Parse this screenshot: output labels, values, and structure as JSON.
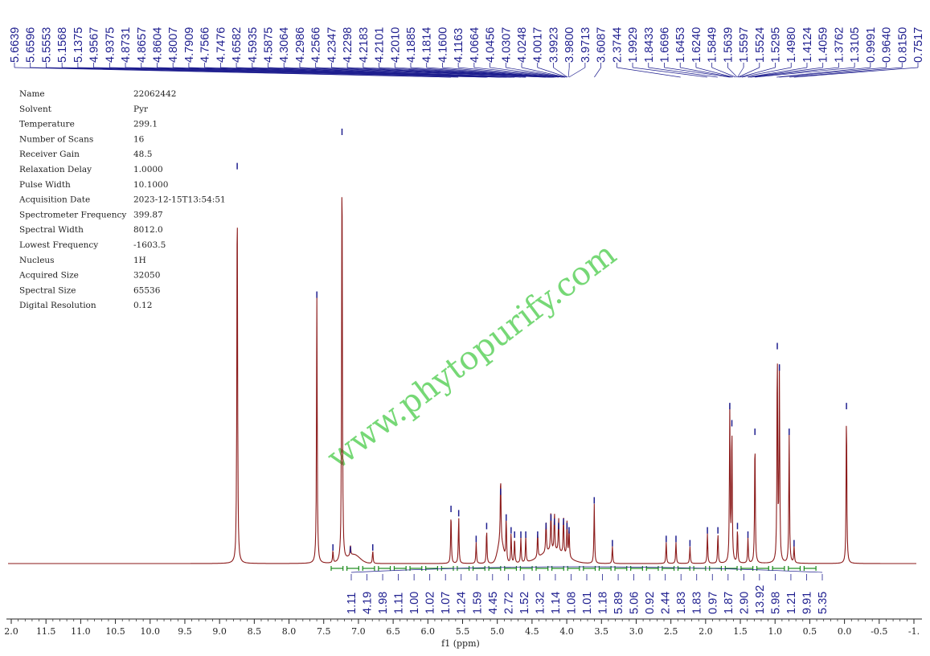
{
  "parameters": [
    {
      "key": "Name",
      "value": "22062442"
    },
    {
      "key": "Solvent",
      "value": "Pyr"
    },
    {
      "key": "Temperature",
      "value": "299.1"
    },
    {
      "key": "Number of Scans",
      "value": "16"
    },
    {
      "key": "Receiver Gain",
      "value": "48.5"
    },
    {
      "key": "Relaxation Delay",
      "value": "1.0000"
    },
    {
      "key": "Pulse Width",
      "value": "10.1000"
    },
    {
      "key": "Acquisition Date",
      "value": "2023-12-15T13:54:51"
    },
    {
      "key": "Spectrometer Frequency",
      "value": "399.87"
    },
    {
      "key": "Spectral Width",
      "value": "8012.0"
    },
    {
      "key": "Lowest Frequency",
      "value": "-1603.5"
    },
    {
      "key": "Nucleus",
      "value": "1H"
    },
    {
      "key": "Acquired Size",
      "value": "32050"
    },
    {
      "key": "Spectral Size",
      "value": "65536"
    },
    {
      "key": "Digital Resolution",
      "value": "0.12"
    }
  ],
  "watermark": "www.phytopurify.com",
  "colors": {
    "spectrum": "#8b1a1a",
    "peak_marks": "#1f1f8f",
    "integral": "#1a8a1a",
    "watermark": "#5fd25f"
  },
  "chart_data": {
    "type": "line",
    "title": "",
    "xlabel": "f1 (ppm)",
    "ylabel": "",
    "x_reversed": true,
    "xlim": [
      12.0,
      -1.0
    ],
    "x_ticks": [
      "2.0",
      "11.5",
      "11.0",
      "10.5",
      "10.0",
      "9.5",
      "9.0",
      "8.5",
      "8.0",
      "7.5",
      "7.0",
      "6.5",
      "6.0",
      "5.5",
      "5.0",
      "4.5",
      "4.0",
      "3.5",
      "3.0",
      "2.5",
      "2.0",
      "1.5",
      "1.0",
      "0.5",
      "0.0",
      "-0.5",
      "-1."
    ],
    "peak_labels": [
      "5.6639",
      "5.6596",
      "5.5553",
      "5.1568",
      "5.1375",
      "4.9567",
      "4.9375",
      "4.8731",
      "4.8657",
      "4.8604",
      "4.8007",
      "4.7909",
      "4.7566",
      "4.7476",
      "4.6582",
      "4.5935",
      "4.5875",
      "4.3064",
      "4.2986",
      "4.2566",
      "4.2347",
      "4.2298",
      "4.2183",
      "4.2101",
      "4.2010",
      "4.1885",
      "4.1814",
      "4.1600",
      "4.1163",
      "4.0664",
      "4.0456",
      "4.0307",
      "4.0248",
      "4.0017",
      "3.9923",
      "3.9800",
      "3.9713",
      "3.6087",
      "2.3744",
      "1.9929",
      "1.8433",
      "1.6696",
      "1.6453",
      "1.6240",
      "1.5849",
      "1.5639",
      "1.5597",
      "1.5524",
      "1.5295",
      "1.4980",
      "1.4124",
      "1.4059",
      "1.3762",
      "1.3105",
      "0.9991",
      "0.9640",
      "0.8150",
      "0.7517"
    ],
    "integrals": [
      "1.11",
      "4.19",
      "1.98",
      "1.11",
      "1.00",
      "1.02",
      "1.07",
      "1.24",
      "1.59",
      "4.45",
      "2.72",
      "1.52",
      "1.32",
      "1.14",
      "1.08",
      "1.01",
      "1.18",
      "5.89",
      "5.06",
      "0.92",
      "2.44",
      "1.83",
      "1.83",
      "0.97",
      "1.87",
      "2.90",
      "13.92",
      "5.98",
      "1.21",
      "9.91",
      "5.35"
    ],
    "peaks": [
      {
        "ppm": 8.72,
        "height": 0.92
      },
      {
        "ppm": 7.58,
        "height": 0.62
      },
      {
        "ppm": 7.22,
        "height": 1.0
      },
      {
        "ppm": 7.35,
        "height": 0.03
      },
      {
        "ppm": 7.1,
        "height": 0.025
      },
      {
        "ppm": 6.78,
        "height": 0.03
      },
      {
        "ppm": 5.66,
        "height": 0.12
      },
      {
        "ppm": 5.55,
        "height": 0.11
      },
      {
        "ppm": 5.3,
        "height": 0.05
      },
      {
        "ppm": 5.15,
        "height": 0.08
      },
      {
        "ppm": 4.95,
        "height": 0.16
      },
      {
        "ppm": 4.87,
        "height": 0.1
      },
      {
        "ppm": 4.8,
        "height": 0.07
      },
      {
        "ppm": 4.75,
        "height": 0.06
      },
      {
        "ppm": 4.66,
        "height": 0.06
      },
      {
        "ppm": 4.59,
        "height": 0.06
      },
      {
        "ppm": 4.42,
        "height": 0.06
      },
      {
        "ppm": 4.3,
        "height": 0.08
      },
      {
        "ppm": 4.23,
        "height": 0.1
      },
      {
        "ppm": 4.18,
        "height": 0.09
      },
      {
        "ppm": 4.12,
        "height": 0.08
      },
      {
        "ppm": 4.05,
        "height": 0.09
      },
      {
        "ppm": 4.0,
        "height": 0.08
      },
      {
        "ppm": 3.97,
        "height": 0.07
      },
      {
        "ppm": 3.61,
        "height": 0.14
      },
      {
        "ppm": 3.35,
        "height": 0.04
      },
      {
        "ppm": 2.58,
        "height": 0.05
      },
      {
        "ppm": 2.44,
        "height": 0.05
      },
      {
        "ppm": 2.24,
        "height": 0.04
      },
      {
        "ppm": 1.99,
        "height": 0.07
      },
      {
        "ppm": 1.84,
        "height": 0.07
      },
      {
        "ppm": 1.67,
        "height": 0.36
      },
      {
        "ppm": 1.64,
        "height": 0.32
      },
      {
        "ppm": 1.56,
        "height": 0.08
      },
      {
        "ppm": 1.41,
        "height": 0.06
      },
      {
        "ppm": 1.31,
        "height": 0.3
      },
      {
        "ppm": 0.99,
        "height": 0.5
      },
      {
        "ppm": 0.96,
        "height": 0.45
      },
      {
        "ppm": 0.82,
        "height": 0.3
      },
      {
        "ppm": 0.75,
        "height": 0.04
      },
      {
        "ppm": 0.0,
        "height": 0.36
      }
    ]
  }
}
